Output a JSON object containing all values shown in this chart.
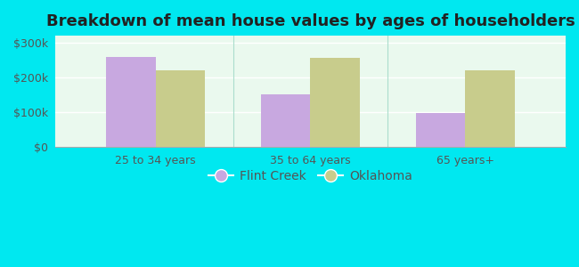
{
  "title": "Breakdown of mean house values by ages of householders",
  "categories": [
    "25 to 34 years",
    "35 to 64 years",
    "65 years+"
  ],
  "flint_creek": [
    258000,
    150000,
    97000
  ],
  "oklahoma": [
    220000,
    255000,
    220000
  ],
  "flint_creek_color": "#c8a8e0",
  "oklahoma_color": "#c8cc8c",
  "ylabel_ticks": [
    0,
    100000,
    200000,
    300000
  ],
  "ylabel_labels": [
    "$0",
    "$100k",
    "$200k",
    "$300k"
  ],
  "ylim": [
    0,
    320000
  ],
  "background_outer": "#00e8f0",
  "background_inner_top": "#f5fff5",
  "background_inner_bottom": "#c8f0e0",
  "legend_labels": [
    "Flint Creek",
    "Oklahoma"
  ],
  "bar_width": 0.32,
  "title_fontsize": 13,
  "axis_fontsize": 9,
  "legend_fontsize": 10
}
